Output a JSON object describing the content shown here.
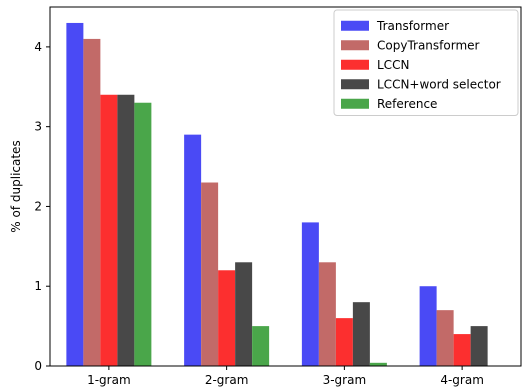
{
  "chart_data": {
    "type": "bar",
    "categories": [
      "1-gram",
      "2-gram",
      "3-gram",
      "4-gram"
    ],
    "series": [
      {
        "name": "Transformer",
        "color": "#4a4af5",
        "values": [
          4.3,
          2.9,
          1.8,
          1.0
        ]
      },
      {
        "name": "CopyTransformer",
        "color": "#c26a68",
        "values": [
          4.1,
          2.3,
          1.3,
          0.7
        ]
      },
      {
        "name": "LCCN",
        "color": "#fc2f2f",
        "values": [
          3.4,
          1.2,
          0.6,
          0.4
        ]
      },
      {
        "name": "LCCN+word selector",
        "color": "#484848",
        "values": [
          3.4,
          1.3,
          0.8,
          0.5
        ]
      },
      {
        "name": "Reference",
        "color": "#4aa64a",
        "values": [
          3.3,
          0.5,
          0.04,
          0.0
        ]
      }
    ],
    "xlabel": "",
    "ylabel": "% of duplicates",
    "ylim": [
      0,
      4.5
    ],
    "yticks": [
      "0",
      "1",
      "2",
      "3",
      "4"
    ],
    "legend_position": "top-right",
    "grid": false
  }
}
